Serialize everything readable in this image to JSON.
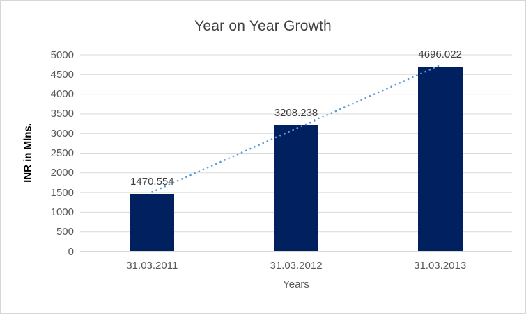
{
  "chart_data": {
    "type": "bar",
    "title": "Year on Year Growth",
    "categories": [
      "31.03.2011",
      "31.03.2012",
      "31.03.2013"
    ],
    "values": [
      1470.554,
      3208.238,
      4696.022
    ],
    "data_labels": [
      "1470.554",
      "3208.238",
      "4696.022"
    ],
    "xlabel": "Years",
    "ylabel": "INR in Mlns.",
    "ylim": [
      0,
      5000
    ],
    "ytick_step": 500,
    "grid": true,
    "legend": "none",
    "bar_color": "#002060",
    "trendline": {
      "type": "linear",
      "style": "dotted",
      "color": "#5b9bd5"
    },
    "colors": {
      "gridline": "#d9d9d9",
      "axis_line": "#c9c9c9",
      "tick_label": "#595959",
      "title_text": "#404040",
      "frame_border": "#d7d7d7"
    }
  }
}
